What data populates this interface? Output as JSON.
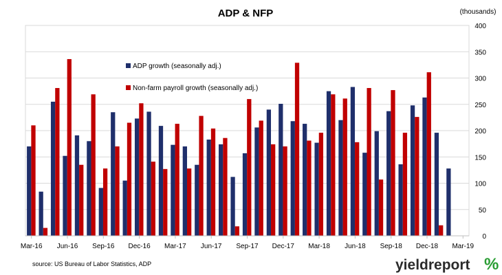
{
  "chart_data": {
    "type": "bar",
    "title": "ADP & NFP",
    "units_label": "(thousands)",
    "ylim": [
      0,
      400
    ],
    "y_ticks": [
      0,
      50,
      100,
      150,
      200,
      250,
      300,
      350,
      400
    ],
    "x_tick_labels": [
      "Mar-16",
      "Jun-16",
      "Sep-16",
      "Dec-16",
      "Mar-17",
      "Jun-17",
      "Sep-17",
      "Dec-17",
      "Mar-18",
      "Jun-18",
      "Sep-18",
      "Dec-18",
      "Mar-19"
    ],
    "grid": true,
    "legend_position": "upper-left-inside",
    "categories": [
      "Mar-16",
      "Apr-16",
      "May-16",
      "Jun-16",
      "Jul-16",
      "Aug-16",
      "Sep-16",
      "Oct-16",
      "Nov-16",
      "Dec-16",
      "Jan-17",
      "Feb-17",
      "Mar-17",
      "Apr-17",
      "May-17",
      "Jun-17",
      "Jul-17",
      "Aug-17",
      "Sep-17",
      "Oct-17",
      "Nov-17",
      "Dec-17",
      "Jan-18",
      "Feb-18",
      "Mar-18",
      "Apr-18",
      "May-18",
      "Jun-18",
      "Jul-18",
      "Aug-18",
      "Sep-18",
      "Oct-18",
      "Nov-18",
      "Dec-18",
      "Jan-19",
      "Feb-19",
      "Mar-19"
    ],
    "series": [
      {
        "name": "ADP growth (seasonally adj.)",
        "color": "#1f2f6b",
        "values": [
          170,
          84,
          255,
          152,
          191,
          180,
          91,
          235,
          105,
          223,
          236,
          209,
          173,
          170,
          135,
          183,
          174,
          112,
          157,
          206,
          240,
          251,
          218,
          213,
          177,
          275,
          220,
          283,
          158,
          199,
          237,
          136,
          248,
          263,
          196,
          128,
          null
        ]
      },
      {
        "name": "Non-farm payroll growth (seasonally adj.)",
        "color": "#c00000",
        "values": [
          210,
          15,
          281,
          336,
          135,
          269,
          128,
          170,
          215,
          252,
          141,
          127,
          213,
          128,
          228,
          204,
          186,
          18,
          260,
          219,
          174,
          170,
          329,
          181,
          196,
          269,
          261,
          178,
          281,
          107,
          277,
          196,
          226,
          311,
          20,
          null,
          null
        ]
      }
    ],
    "source": "source: US Bureau of Labor Statistics, ADP",
    "logo": {
      "text": "yieldreport",
      "mark": "%"
    }
  }
}
